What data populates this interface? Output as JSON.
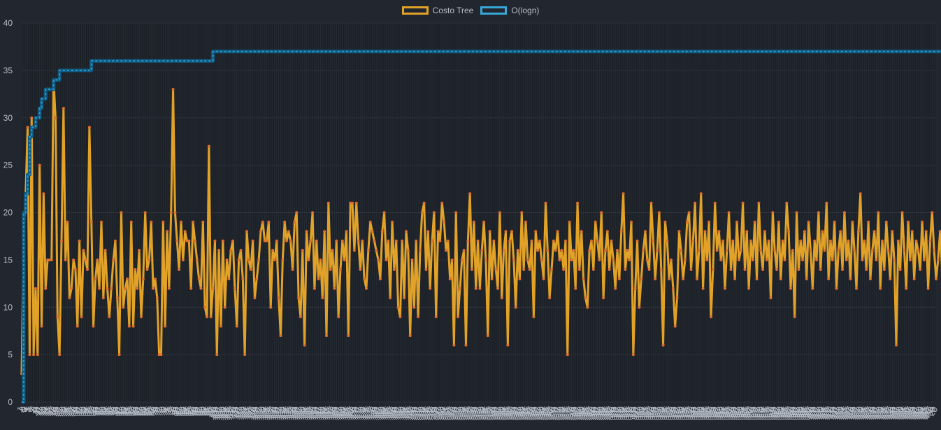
{
  "legend": [
    {
      "label": "Costo Tree",
      "color": "#e2a228"
    },
    {
      "label": "O(logn)",
      "color": "#37a7d9"
    }
  ],
  "chart_data": {
    "type": "line",
    "title": "",
    "xlabel": "",
    "ylabel": "",
    "ylim": [
      0,
      40
    ],
    "yticks": [
      0,
      5,
      10,
      15,
      20,
      25,
      30,
      35,
      40
    ],
    "x_count": 460,
    "x_first_label": "1",
    "x_last_label": "20",
    "grid": true,
    "legend_position": "top-center",
    "series": [
      {
        "name": "Costo Tree",
        "color": "#e2a228",
        "point_color": "#e0712c",
        "values": [
          3,
          18,
          22,
          29,
          5,
          30,
          5,
          12,
          5,
          25,
          8,
          22,
          12,
          15,
          15,
          15,
          34,
          30,
          9,
          5,
          17,
          31,
          15,
          19,
          11,
          12,
          15,
          14,
          8,
          17,
          9,
          16,
          15,
          14,
          29,
          19,
          8,
          13,
          15,
          12,
          19,
          11,
          16,
          12,
          9,
          12,
          15,
          17,
          11,
          5,
          20,
          10,
          12,
          13,
          8,
          19,
          8,
          14,
          12,
          16,
          9,
          13,
          20,
          14,
          15,
          19,
          12,
          13,
          11,
          5,
          5,
          19,
          8,
          18,
          12,
          20,
          33,
          20,
          17,
          14,
          19,
          15,
          18,
          17,
          17,
          12,
          19,
          17,
          15,
          13,
          12,
          19,
          10,
          9,
          27,
          9,
          12,
          17,
          5,
          16,
          8,
          17,
          10,
          15,
          13,
          16,
          17,
          12,
          8,
          15,
          16,
          13,
          5,
          18,
          15,
          14,
          17,
          11,
          13,
          15,
          18,
          19,
          17,
          17,
          19,
          10,
          16,
          15,
          17,
          11,
          7,
          15,
          19,
          17,
          18,
          17,
          14,
          19,
          20,
          11,
          9,
          16,
          6,
          18,
          15,
          17,
          20,
          12,
          17,
          13,
          15,
          11,
          18,
          7,
          21,
          14,
          16,
          12,
          17,
          9,
          14,
          17,
          15,
          18,
          7,
          21,
          21,
          16,
          21,
          17,
          14,
          17,
          13,
          12,
          16,
          19,
          18,
          17,
          16,
          15,
          13,
          18,
          20,
          15,
          17,
          11,
          19,
          14,
          17,
          10,
          9,
          17,
          11,
          18,
          16,
          7,
          15,
          10,
          17,
          9,
          16,
          20,
          21,
          14,
          18,
          12,
          17,
          20,
          9,
          18,
          17,
          21,
          19,
          16,
          17,
          13,
          15,
          6,
          20,
          9,
          12,
          15,
          16,
          6,
          17,
          22,
          14,
          19,
          12,
          17,
          12,
          16,
          19,
          15,
          7,
          18,
          13,
          17,
          14,
          12,
          20,
          11,
          16,
          18,
          6,
          17,
          18,
          15,
          10,
          16,
          13,
          20,
          14,
          19,
          15,
          14,
          17,
          9,
          18,
          16,
          17,
          15,
          13,
          21,
          16,
          11,
          14,
          17,
          16,
          18,
          15,
          16,
          14,
          17,
          5,
          19,
          15,
          16,
          12,
          21,
          14,
          18,
          13,
          11,
          10,
          16,
          17,
          14,
          19,
          17,
          15,
          20,
          11,
          16,
          18,
          14,
          17,
          15,
          12,
          16,
          13,
          18,
          22,
          14,
          16,
          15,
          19,
          5,
          12,
          17,
          10,
          13,
          16,
          18,
          15,
          14,
          21,
          17,
          13,
          16,
          20,
          14,
          6,
          19,
          17,
          13,
          15,
          12,
          8,
          11,
          18,
          16,
          13,
          15,
          19,
          20,
          14,
          17,
          21,
          13,
          16,
          22,
          12,
          18,
          15,
          19,
          9,
          14,
          21,
          16,
          18,
          15,
          17,
          12,
          16,
          20,
          14,
          17,
          13,
          19,
          15,
          16,
          21,
          14,
          18,
          12,
          17,
          15,
          19,
          13,
          21,
          16,
          14,
          18,
          15,
          17,
          11,
          20,
          16,
          14,
          19,
          13,
          17,
          15,
          21,
          18,
          12,
          16,
          9,
          20,
          14,
          17,
          15,
          18,
          13,
          19,
          16,
          12,
          17,
          15,
          20,
          14,
          18,
          16,
          21,
          13,
          17,
          15,
          19,
          12,
          16,
          18,
          14,
          20,
          15,
          17,
          13,
          19,
          16,
          12,
          18,
          22,
          15,
          17,
          14,
          19,
          13,
          16,
          18,
          15,
          20,
          12,
          17,
          14,
          19,
          16,
          13,
          18,
          15,
          6,
          17,
          14,
          20,
          16,
          12,
          19,
          15,
          18,
          13,
          17,
          16,
          14,
          19,
          15,
          18,
          12,
          17,
          20,
          16,
          13,
          15,
          18,
          14,
          19,
          17,
          12,
          16,
          11
        ]
      },
      {
        "name": "O(logn)",
        "color": "#37a7d9",
        "values": [
          0,
          20,
          22,
          24,
          28,
          29,
          29,
          30,
          30,
          31,
          32,
          32,
          33,
          33,
          33,
          33,
          34,
          34,
          34,
          35,
          35,
          35,
          35,
          35,
          35,
          35,
          35,
          35,
          35,
          35,
          35,
          35,
          35,
          35,
          35,
          36,
          36,
          36,
          36,
          36,
          36,
          36,
          36,
          36,
          36,
          36,
          36,
          36,
          36,
          36,
          36,
          36,
          36,
          36,
          36,
          36,
          36,
          36,
          36,
          36,
          36,
          36,
          36,
          36,
          36,
          36,
          36,
          36,
          36,
          36,
          36,
          36,
          36,
          36,
          36,
          36,
          36,
          36,
          36,
          36,
          36,
          36,
          36,
          36,
          36,
          36,
          36,
          36,
          36,
          36,
          36,
          36,
          36,
          36,
          36,
          36,
          37,
          37,
          37,
          37,
          37,
          37,
          37,
          37,
          37,
          37,
          37,
          37,
          37,
          37,
          37,
          37,
          37,
          37,
          37,
          37,
          37,
          37,
          37,
          37,
          37,
          37,
          37,
          37,
          37,
          37,
          37,
          37,
          37,
          37,
          37,
          37,
          37,
          37,
          37,
          37,
          37,
          37,
          37,
          37,
          37,
          37,
          37,
          37,
          37,
          37,
          37,
          37,
          37,
          37,
          37,
          37,
          37,
          37,
          37,
          37,
          37,
          37,
          37,
          37,
          37,
          37,
          37,
          37,
          37,
          37,
          37,
          37,
          37,
          37,
          37,
          37,
          37,
          37,
          37,
          37,
          37,
          37,
          37,
          37,
          37,
          37,
          37,
          37,
          37,
          37,
          37,
          37,
          37,
          37,
          37,
          37,
          37,
          37,
          37,
          37,
          37,
          37,
          37,
          37,
          37,
          37,
          37,
          37,
          37,
          37,
          37,
          37,
          37,
          37,
          37,
          37,
          37,
          37,
          37,
          37,
          37,
          37,
          37,
          37,
          37,
          37,
          37,
          37,
          37,
          37,
          37,
          37,
          37,
          37,
          37,
          37,
          37,
          37,
          37,
          37,
          37,
          37,
          37,
          37,
          37,
          37,
          37,
          37,
          37,
          37,
          37,
          37,
          37,
          37,
          37,
          37,
          37,
          37,
          37,
          37,
          37,
          37,
          37,
          37,
          37,
          37,
          37,
          37,
          37,
          37,
          37,
          37,
          37,
          37,
          37,
          37,
          37,
          37,
          37,
          37,
          37,
          37,
          37,
          37,
          37,
          37,
          37,
          37,
          37,
          37,
          37,
          37,
          37,
          37,
          37,
          37,
          37,
          37,
          37,
          37,
          37,
          37,
          37,
          37,
          37,
          37,
          37,
          37,
          37,
          37,
          37,
          37,
          37,
          37,
          37,
          37,
          37,
          37,
          37,
          37,
          37,
          37,
          37,
          37,
          37,
          37,
          37,
          37,
          37,
          37,
          37,
          37,
          37,
          37,
          37,
          37,
          37,
          37,
          37,
          37,
          37,
          37,
          37,
          37,
          37,
          37,
          37,
          37,
          37,
          37,
          37,
          37,
          37,
          37,
          37,
          37,
          37,
          37,
          37,
          37,
          37,
          37,
          37,
          37,
          37,
          37,
          37,
          37,
          37,
          37,
          37,
          37,
          37,
          37,
          37,
          37,
          37,
          37,
          37,
          37,
          37,
          37,
          37,
          37,
          37,
          37,
          37,
          37,
          37,
          37,
          37,
          37,
          37,
          37,
          37,
          37,
          37,
          37,
          37,
          37,
          37,
          37,
          37,
          37,
          37,
          37,
          37,
          37,
          37,
          37,
          37,
          37,
          37,
          37,
          37,
          37,
          37,
          37,
          37,
          37,
          37,
          37,
          37,
          37,
          37,
          37,
          37,
          37,
          37,
          37,
          37,
          37,
          37,
          37,
          37,
          37,
          37,
          37,
          37,
          37,
          37,
          37,
          37,
          37,
          37,
          37,
          37,
          37,
          37,
          37,
          37,
          37,
          37,
          37,
          37,
          37,
          37,
          37,
          37,
          37,
          37,
          37,
          37,
          37,
          37,
          37,
          37,
          37,
          37,
          37,
          37,
          37,
          37,
          37,
          37,
          37,
          37,
          37,
          37,
          37,
          37,
          37,
          37,
          37,
          37,
          37,
          37,
          37,
          37
        ]
      }
    ]
  }
}
